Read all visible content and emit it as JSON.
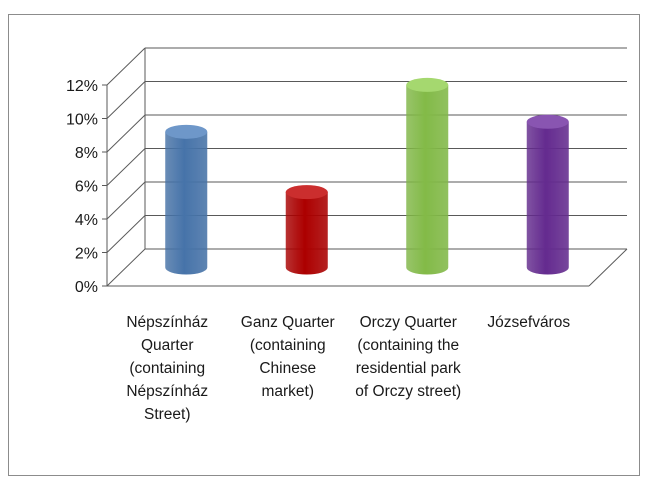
{
  "chart_data": {
    "type": "bar",
    "style": "3d-cylinder",
    "categories": [
      "Népszínház Quarter (containing Népszínház Street)",
      "Ganz Quarter (containing Chinese market)",
      "Orczy Quarter (containing the residential park of Orczy street)",
      "Józsefváros"
    ],
    "category_label_lines": [
      [
        "Népszínház",
        "Quarter",
        "(containing",
        "Népszínház",
        "Street)"
      ],
      [
        "Ganz Quarter",
        "(containing",
        "Chinese",
        "market)"
      ],
      [
        "Orczy Quarter",
        "(containing the",
        "residential park",
        "of Orczy street)"
      ],
      [
        "Józsefváros"
      ]
    ],
    "values": [
      0.081,
      0.045,
      0.109,
      0.087
    ],
    "colors": [
      "#4f81bd",
      "#c00000",
      "#92d050",
      "#7030a0"
    ],
    "yticks": [
      "0%",
      "2%",
      "4%",
      "6%",
      "8%",
      "10%",
      "12%"
    ],
    "ylim": [
      0,
      0.12
    ],
    "grid": true,
    "legend": "none",
    "title": "",
    "xlabel": "",
    "ylabel": ""
  }
}
